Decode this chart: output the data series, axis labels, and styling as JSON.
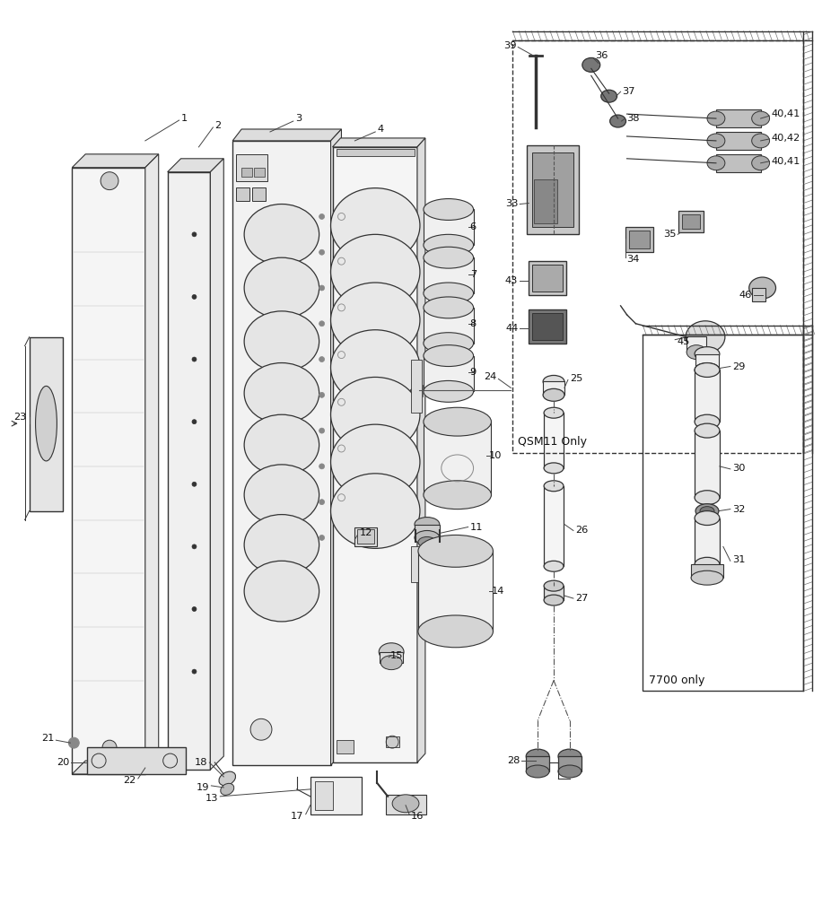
{
  "bg_color": "#ffffff",
  "fig_width": 9.16,
  "fig_height": 10.0,
  "line_color": "#333333",
  "light_gray": "#d8d8d8",
  "mid_gray": "#aaaaaa",
  "dark_gray": "#666666"
}
